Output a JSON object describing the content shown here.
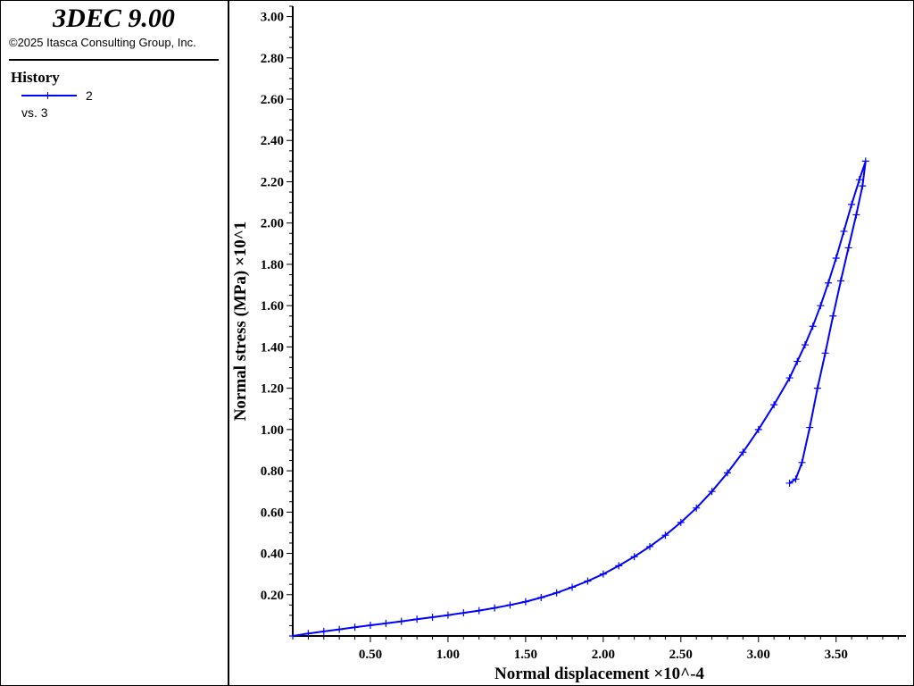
{
  "header": {
    "app_title": "3DEC 9.00",
    "copyright": "©2025 Itasca Consulting Group, Inc."
  },
  "legend": {
    "heading": "History",
    "series_name": "2",
    "vs_label": "vs. 3"
  },
  "colors": {
    "series": "#0000ff",
    "axis": "#000000",
    "background": "#ffffff"
  },
  "chart_data": {
    "type": "line",
    "xlabel": "Normal displacement ×10^-4",
    "ylabel": "Normal stress (MPa) ×10^1",
    "xlim": [
      0,
      3.95
    ],
    "ylim": [
      0,
      3.05
    ],
    "x_ticks": [
      0.5,
      1.0,
      1.5,
      2.0,
      2.5,
      3.0,
      3.5
    ],
    "x_tick_labels": [
      "0.50",
      "1.00",
      "1.50",
      "2.00",
      "2.50",
      "3.00",
      "3.50"
    ],
    "y_ticks": [
      0.2,
      0.4,
      0.6,
      0.8,
      1.0,
      1.2,
      1.4,
      1.6,
      1.8,
      2.0,
      2.2,
      2.4,
      2.6,
      2.8,
      3.0
    ],
    "y_tick_labels": [
      "0.20",
      "0.40",
      "0.60",
      "0.80",
      "1.00",
      "1.20",
      "1.40",
      "1.60",
      "1.80",
      "2.00",
      "2.20",
      "2.40",
      "2.60",
      "2.80",
      "3.00"
    ],
    "grid": false,
    "markers": "plus",
    "series": [
      {
        "name": "2",
        "x": [
          0,
          0.1,
          0.2,
          0.3,
          0.4,
          0.5,
          0.6,
          0.7,
          0.8,
          0.9,
          1.0,
          1.1,
          1.2,
          1.3,
          1.4,
          1.5,
          1.6,
          1.7,
          1.8,
          1.9,
          2.0,
          2.1,
          2.2,
          2.3,
          2.4,
          2.5,
          2.6,
          2.7,
          2.8,
          2.9,
          3.0,
          3.1,
          3.2,
          3.25,
          3.3,
          3.35,
          3.4,
          3.45,
          3.5,
          3.55,
          3.6,
          3.65,
          3.69,
          3.67,
          3.63,
          3.58,
          3.53,
          3.48,
          3.43,
          3.38,
          3.33,
          3.28,
          3.24,
          3.2
        ],
        "y": [
          0,
          0.012,
          0.022,
          0.032,
          0.042,
          0.052,
          0.061,
          0.071,
          0.081,
          0.091,
          0.101,
          0.112,
          0.123,
          0.136,
          0.15,
          0.166,
          0.186,
          0.209,
          0.236,
          0.266,
          0.3,
          0.34,
          0.384,
          0.433,
          0.488,
          0.55,
          0.62,
          0.7,
          0.79,
          0.89,
          1.0,
          1.12,
          1.25,
          1.33,
          1.41,
          1.5,
          1.6,
          1.71,
          1.83,
          1.96,
          2.09,
          2.21,
          2.3,
          2.18,
          2.04,
          1.88,
          1.72,
          1.55,
          1.37,
          1.2,
          1.01,
          0.84,
          0.76,
          0.74
        ]
      }
    ]
  }
}
